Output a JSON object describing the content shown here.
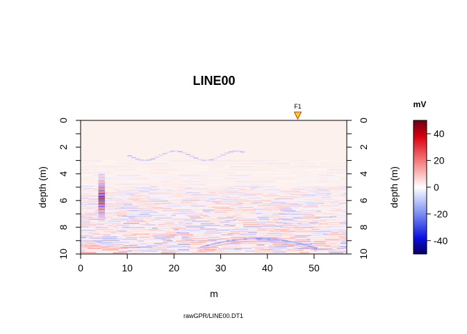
{
  "chart_data": {
    "type": "heatmap",
    "title": "LINE00",
    "xlabel": "m",
    "ylabel_left": "depth (m)",
    "ylabel_right": "depth (m)",
    "footer": "rawGPR/LINE00.DT1",
    "xlim": [
      0,
      57
    ],
    "ylim": [
      10,
      0
    ],
    "x_ticks": [
      0,
      10,
      20,
      30,
      40,
      50
    ],
    "y_ticks": [
      0,
      2,
      4,
      6,
      8,
      10
    ],
    "marker": {
      "label": "F1",
      "x": 46.5,
      "color": "#ffd700"
    },
    "colorbar": {
      "label": "mV",
      "range": [
        -50,
        50
      ],
      "ticks": [
        40,
        20,
        0,
        -20,
        -40
      ],
      "colors": {
        "min": "#000080",
        "low": "#0000ff",
        "zero": "#ffffff",
        "high": "#ff0000",
        "max": "#800000"
      }
    },
    "features": [
      {
        "description": "strong reflection column",
        "x": [
          3.8,
          5.2
        ],
        "depth": [
          4.0,
          7.5
        ],
        "amplitude": 48
      },
      {
        "description": "shallow reflector",
        "x": [
          10,
          35
        ],
        "depth": [
          2.3,
          3.2
        ],
        "amplitude": -15
      },
      {
        "description": "layered reflections",
        "x": [
          0,
          57
        ],
        "depth": [
          5.0,
          10.0
        ],
        "amplitude": 20
      },
      {
        "description": "deep reflector",
        "x": [
          25,
          50
        ],
        "depth": [
          8.8,
          9.6
        ],
        "amplitude": -20
      }
    ]
  }
}
